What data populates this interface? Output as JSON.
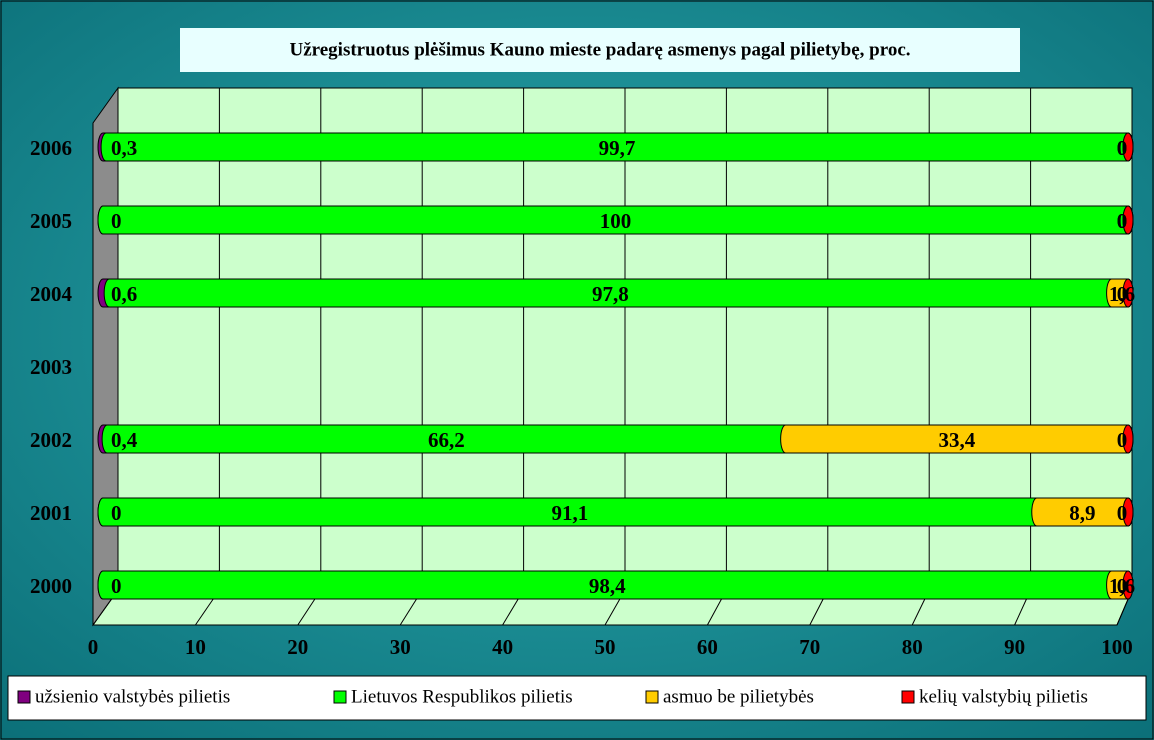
{
  "chart_data": {
    "type": "stacked-bar-horizontal",
    "title": "Užregistruotus plėšimus Kauno mieste padarę asmenys pagal pilietybę, proc.",
    "categories": [
      "2000",
      "2001",
      "2002",
      "2003",
      "2004",
      "2005",
      "2006"
    ],
    "series": [
      {
        "name": "užsienio valstybės pilietis",
        "color": "#800080",
        "values": [
          0,
          0,
          0.4,
          null,
          0.6,
          0,
          0.3
        ],
        "value_labels": [
          "0",
          "0",
          "0,4",
          null,
          "0,6",
          "0",
          "0,3"
        ]
      },
      {
        "name": "Lietuvos Respublikos pilietis",
        "color": "#00ff00",
        "values": [
          98.4,
          91.1,
          66.2,
          null,
          97.8,
          100,
          99.7
        ],
        "value_labels": [
          "98,4",
          "91,1",
          "66,2",
          null,
          "97,8",
          "100",
          "99,7"
        ]
      },
      {
        "name": "asmuo be pilietybės",
        "color": "#ffcc00",
        "values": [
          1.6,
          8.9,
          33.4,
          null,
          1.6,
          0,
          0
        ],
        "value_labels": [
          "1,6",
          "8,9",
          "33,4",
          null,
          "1,6",
          "0",
          "0"
        ]
      },
      {
        "name": "kelių valstybių pilietis",
        "color": "#ff0000",
        "values": [
          0,
          0,
          0,
          null,
          0,
          0,
          0
        ],
        "value_labels": [
          "0",
          "0",
          "0",
          null,
          "0",
          "0",
          "0"
        ]
      }
    ],
    "xlim": [
      0,
      100
    ],
    "xticks": [
      0,
      10,
      20,
      30,
      40,
      50,
      60,
      70,
      80,
      90,
      100
    ],
    "grid": true,
    "legend": "bottom"
  }
}
